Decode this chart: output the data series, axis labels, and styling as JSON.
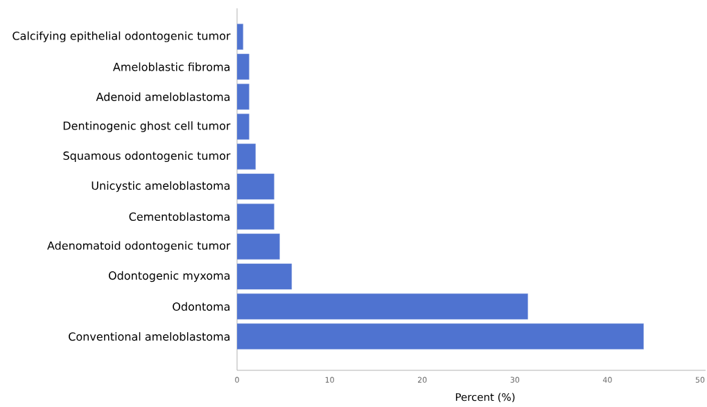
{
  "chart_data": {
    "type": "bar",
    "orientation": "horizontal",
    "xlabel": "Percent (%)",
    "categories": [
      "Calcifying epithelial odontogenic tumor",
      "Ameloblastic fibroma",
      "Adenoid ameloblastoma",
      "Dentinogenic ghost cell tumor",
      "Squamous odontogenic tumor",
      "Unicystic ameloblastoma",
      "Cementoblastoma",
      "Adenomatoid odontogenic tumor",
      "Odontogenic myxoma",
      "Odontoma",
      "Conventional ameloblastoma"
    ],
    "values": [
      0.65,
      1.3,
      1.3,
      1.3,
      2.0,
      4.0,
      4.0,
      4.6,
      5.9,
      31.4,
      43.9
    ],
    "color": "#4f73d0",
    "xlim": [
      0,
      50.6
    ],
    "xticks": [
      0,
      10,
      20,
      30,
      40,
      50
    ]
  }
}
